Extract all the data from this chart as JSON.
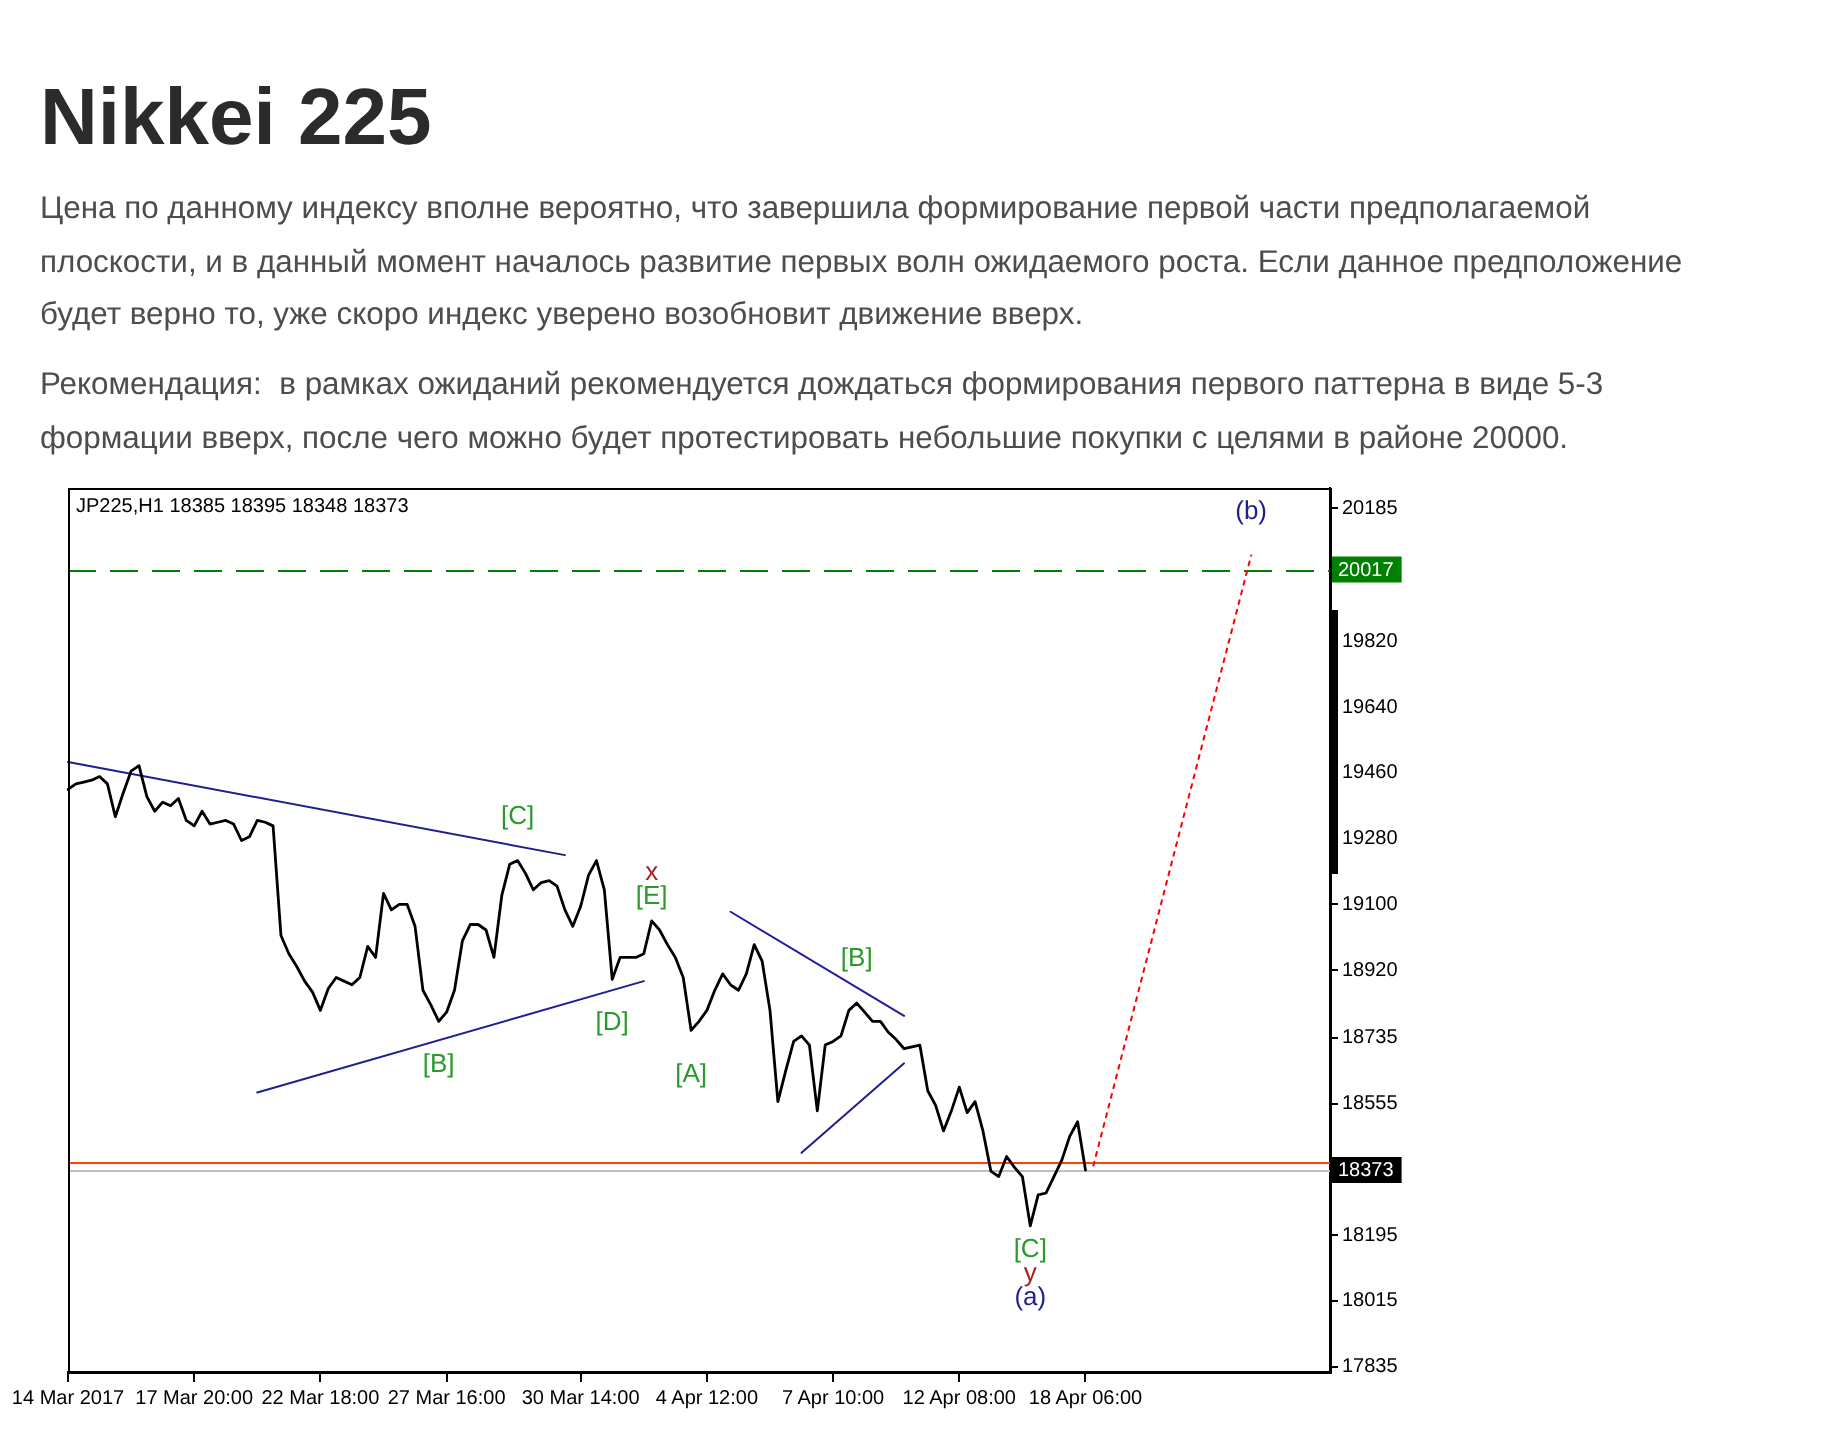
{
  "chart_data": {
    "type": "line",
    "title": "Nikkei 225",
    "subtitle": "Цена по данному индексу вполне вероятно, что завершила формирование первой части предполагаемой плоскости, и в данный момент началось развитие первых волн ожидаемого роста. Если данное предположение будет верно то, уже скоро индекс уверено возобновит движение вверх.\nРекомендация:  в рамках ожиданий рекомендуется дождаться формирования первого паттерна в виде 5-3 формации вверх, после чего можно будет протестировать небольшие покупки с целями в районе 20000.",
    "categories": [
      "14 Mar 2017",
      null,
      null,
      null,
      null,
      null,
      null,
      null,
      null,
      null,
      null,
      null,
      null,
      null,
      null,
      null,
      "17 Mar 20:00",
      null,
      null,
      null,
      null,
      null,
      null,
      null,
      null,
      null,
      null,
      null,
      null,
      null,
      null,
      null,
      "22 Mar 18:00",
      null,
      null,
      null,
      null,
      null,
      null,
      null,
      null,
      null,
      null,
      null,
      null,
      null,
      null,
      null,
      "27 Mar 16:00",
      null,
      null,
      null,
      null,
      null,
      null,
      null,
      null,
      null,
      null,
      null,
      null,
      null,
      null,
      null,
      null,
      "30 Mar 14:00",
      null,
      null,
      null,
      null,
      null,
      null,
      null,
      null,
      null,
      null,
      null,
      null,
      null,
      null,
      null,
      "4 Apr 12:00",
      null,
      null,
      null,
      null,
      null,
      null,
      null,
      null,
      null,
      null,
      null,
      null,
      null,
      null,
      null,
      "7 Apr 10:00",
      null,
      null,
      null,
      null,
      null,
      null,
      null,
      null,
      null,
      null,
      null,
      null,
      null,
      null,
      null,
      "12 Apr 08:00",
      null,
      null,
      null,
      null,
      null,
      null,
      null,
      null,
      null,
      null,
      null,
      null,
      null,
      null,
      null,
      "18 Apr 06:00",
      null,
      null,
      null,
      null,
      null,
      null,
      null,
      null,
      null,
      null,
      null,
      null,
      null,
      null,
      null,
      null,
      null,
      null,
      null,
      null,
      null,
      null,
      null,
      null,
      null,
      null,
      null,
      null,
      null,
      null,
      null
    ],
    "series": [
      {
        "color": "#000000",
        "values": [
          19415,
          19430,
          19435,
          19440,
          19450,
          19430,
          19340,
          19405,
          19465,
          19480,
          19395,
          19355,
          19380,
          19370,
          19390,
          19330,
          19315,
          19355,
          19320,
          19325,
          19330,
          19320,
          19275,
          19285,
          19330,
          19325,
          19315,
          19015,
          18965,
          18930,
          18890,
          18860,
          18810,
          18870,
          18900,
          18890,
          18880,
          18900,
          18985,
          18955,
          19130,
          19085,
          19100,
          19100,
          19040,
          18865,
          18825,
          18780,
          18805,
          18865,
          19000,
          19045,
          19045,
          19030,
          18955,
          19125,
          19210,
          19220,
          19185,
          19140,
          19160,
          19165,
          19150,
          19085,
          19040,
          19095,
          19180,
          19220,
          19140,
          18895,
          18955,
          18955,
          18955,
          18965,
          19055,
          19030,
          18990,
          18955,
          18900,
          18755,
          18780,
          18810,
          18865,
          18910,
          18880,
          18865,
          18910,
          18990,
          18945,
          18810,
          18560,
          18645,
          18725,
          18740,
          18715,
          18535,
          18715,
          18725,
          18740,
          18810,
          18830,
          18805,
          18780,
          18780,
          18750,
          18730,
          18705,
          18710,
          18715,
          18590,
          18550,
          18480,
          18535,
          18600,
          18530,
          18560,
          18480,
          18370,
          18355,
          18410,
          18380,
          18355,
          18220,
          18305,
          18310,
          18355,
          18400,
          18465,
          18505,
          18373,
          null,
          null,
          null,
          null,
          null,
          null,
          null,
          null,
          null,
          null,
          null,
          null,
          null,
          null,
          null,
          null,
          null,
          null,
          null,
          null,
          null,
          null,
          null,
          null,
          null,
          null,
          null,
          null,
          null,
          null,
          null
        ]
      },
      {
        "type": "line",
        "color": "#1f1f8f",
        "values": [
          19490,
          null,
          null,
          null,
          null,
          null,
          null,
          null,
          null,
          null,
          null,
          null,
          null,
          null,
          null,
          null,
          null,
          null,
          null,
          null,
          null,
          null,
          null,
          null,
          null,
          null,
          null,
          null,
          null,
          null,
          null,
          null,
          null,
          null,
          null,
          null,
          null,
          null,
          null,
          null,
          null,
          null,
          null,
          null,
          null,
          null,
          null,
          null,
          null,
          null,
          null,
          null,
          null,
          null,
          null,
          null,
          null,
          null,
          null,
          null,
          null,
          null,
          null,
          19235,
          null,
          null,
          null,
          null,
          null,
          null,
          null,
          null,
          null,
          null,
          null,
          null,
          null,
          null,
          null,
          null,
          null,
          null,
          null,
          null,
          null,
          null,
          null,
          null,
          null,
          null,
          null,
          null,
          null,
          null,
          null,
          null,
          null,
          null,
          null,
          null,
          null,
          null,
          null,
          null,
          null,
          null,
          null,
          null,
          null,
          null,
          null,
          null,
          null,
          null,
          null,
          null,
          null,
          null,
          null,
          null,
          null,
          null,
          null,
          null,
          null,
          null,
          null,
          null,
          null,
          null,
          null,
          null,
          null,
          null,
          null,
          null,
          null,
          null,
          null,
          null,
          null,
          null,
          null,
          null,
          null,
          null,
          null,
          null,
          null,
          null,
          null,
          null,
          null,
          null,
          null,
          null,
          null,
          null,
          null,
          null,
          null
        ]
      },
      {
        "type": "line",
        "color": "#1f1f8f",
        "values": [
          null,
          null,
          null,
          null,
          null,
          null,
          null,
          null,
          null,
          null,
          null,
          null,
          null,
          null,
          null,
          null,
          null,
          null,
          null,
          null,
          null,
          null,
          null,
          null,
          18585,
          null,
          null,
          null,
          null,
          null,
          null,
          null,
          null,
          null,
          null,
          null,
          null,
          null,
          null,
          null,
          null,
          null,
          null,
          null,
          null,
          null,
          null,
          null,
          null,
          null,
          null,
          null,
          null,
          null,
          null,
          null,
          null,
          null,
          null,
          null,
          null,
          null,
          null,
          null,
          null,
          null,
          null,
          null,
          null,
          null,
          null,
          null,
          null,
          18890,
          null,
          null,
          null,
          null,
          null,
          null,
          null,
          null,
          null,
          null,
          null,
          null,
          null,
          null,
          null,
          null,
          null,
          null,
          null,
          null,
          null,
          null,
          null,
          null,
          null,
          null,
          null,
          null,
          null,
          null,
          null,
          null,
          null,
          null,
          null,
          null,
          null,
          null,
          null,
          null,
          null,
          null,
          null,
          null,
          null,
          null,
          null,
          null,
          null,
          null,
          null,
          null,
          null,
          null,
          null,
          null,
          null,
          null,
          null,
          null,
          null,
          null,
          null,
          null,
          null,
          null,
          null,
          null,
          null,
          null,
          null,
          null,
          null,
          null,
          null,
          null,
          null,
          null,
          null,
          null,
          null,
          null,
          null,
          null,
          null,
          null,
          null
        ]
      },
      {
        "type": "line",
        "color": "#1f1f8f",
        "values": [
          null,
          null,
          null,
          null,
          null,
          null,
          null,
          null,
          null,
          null,
          null,
          null,
          null,
          null,
          null,
          null,
          null,
          null,
          null,
          null,
          null,
          null,
          null,
          null,
          null,
          null,
          null,
          null,
          null,
          null,
          null,
          null,
          null,
          null,
          null,
          null,
          null,
          null,
          null,
          null,
          null,
          null,
          null,
          null,
          null,
          null,
          null,
          null,
          null,
          null,
          null,
          null,
          null,
          null,
          null,
          null,
          null,
          null,
          null,
          null,
          null,
          null,
          null,
          null,
          null,
          null,
          null,
          null,
          null,
          null,
          null,
          null,
          null,
          null,
          null,
          null,
          null,
          null,
          null,
          null,
          null,
          null,
          null,
          null,
          19080,
          null,
          null,
          null,
          null,
          null,
          null,
          null,
          null,
          null,
          null,
          null,
          null,
          null,
          null,
          null,
          null,
          null,
          null,
          null,
          null,
          null,
          18795,
          null,
          null,
          null,
          null,
          null,
          null,
          null,
          null,
          null,
          null,
          null,
          null,
          null,
          null,
          null,
          null,
          null,
          null,
          null,
          null,
          null,
          null,
          null,
          null,
          null,
          null,
          null,
          null,
          null,
          null,
          null,
          null,
          null,
          null,
          null,
          null,
          null,
          null,
          null,
          null,
          null,
          null,
          null,
          null,
          null,
          null,
          null,
          null,
          null,
          null,
          null,
          null,
          null,
          null
        ]
      },
      {
        "type": "line",
        "color": "#1f1f8f",
        "values": [
          null,
          null,
          null,
          null,
          null,
          null,
          null,
          null,
          null,
          null,
          null,
          null,
          null,
          null,
          null,
          null,
          null,
          null,
          null,
          null,
          null,
          null,
          null,
          null,
          null,
          null,
          null,
          null,
          null,
          null,
          null,
          null,
          null,
          null,
          null,
          null,
          null,
          null,
          null,
          null,
          null,
          null,
          null,
          null,
          null,
          null,
          null,
          null,
          null,
          null,
          null,
          null,
          null,
          null,
          null,
          null,
          null,
          null,
          null,
          null,
          null,
          null,
          null,
          null,
          null,
          null,
          null,
          null,
          null,
          null,
          null,
          null,
          null,
          null,
          null,
          null,
          null,
          null,
          null,
          null,
          null,
          null,
          null,
          null,
          null,
          null,
          null,
          null,
          null,
          null,
          null,
          null,
          null,
          18420,
          null,
          null,
          null,
          null,
          null,
          null,
          null,
          null,
          null,
          null,
          null,
          null,
          18665,
          null,
          null,
          null,
          null,
          null,
          null,
          null,
          null,
          null,
          null,
          null,
          null,
          null,
          null,
          null,
          null,
          null,
          null,
          null,
          null,
          null,
          null,
          null,
          null,
          null,
          null,
          null,
          null,
          null,
          null,
          null,
          null,
          null,
          null,
          null,
          null,
          null,
          null,
          null,
          null,
          null,
          null,
          null,
          null,
          null,
          null,
          null,
          null,
          null,
          null,
          null,
          null,
          null,
          null
        ]
      },
      {
        "type": "line",
        "color": "#ff0000",
        "line_style": "dotted",
        "values": [
          null,
          null,
          null,
          null,
          null,
          null,
          null,
          null,
          null,
          null,
          null,
          null,
          null,
          null,
          null,
          null,
          null,
          null,
          null,
          null,
          null,
          null,
          null,
          null,
          null,
          null,
          null,
          null,
          null,
          null,
          null,
          null,
          null,
          null,
          null,
          null,
          null,
          null,
          null,
          null,
          null,
          null,
          null,
          null,
          null,
          null,
          null,
          null,
          null,
          null,
          null,
          null,
          null,
          null,
          null,
          null,
          null,
          null,
          null,
          null,
          null,
          null,
          null,
          null,
          null,
          null,
          null,
          null,
          null,
          null,
          null,
          null,
          null,
          null,
          null,
          null,
          null,
          null,
          null,
          null,
          null,
          null,
          null,
          null,
          null,
          null,
          null,
          null,
          null,
          null,
          null,
          null,
          null,
          null,
          null,
          null,
          null,
          null,
          null,
          null,
          null,
          null,
          null,
          null,
          null,
          null,
          null,
          null,
          null,
          null,
          null,
          null,
          null,
          null,
          null,
          null,
          null,
          null,
          null,
          null,
          null,
          null,
          null,
          null,
          null,
          null,
          null,
          null,
          null,
          null,
          18385,
          null,
          null,
          null,
          null,
          null,
          null,
          null,
          null,
          null,
          null,
          null,
          null,
          null,
          null,
          null,
          null,
          null,
          null,
          null,
          20055,
          null,
          null,
          null,
          null,
          null,
          null,
          null,
          null,
          null,
          null
        ]
      }
    ],
    "ylim": [
      17820,
      20240
    ],
    "yticks": [
      20185,
      19820,
      19640,
      19460,
      19280,
      19100,
      18920,
      18735,
      18555,
      18195,
      18015,
      17835
    ],
    "ref_lines": [
      {
        "axis": "y",
        "value": 20017,
        "label": "20017",
        "color": "#008000",
        "line_style": "dashed"
      },
      {
        "axis": "y",
        "value": 18395,
        "color": "#ff4500"
      },
      {
        "axis": "y",
        "value": 18373,
        "label": "18373",
        "color": "#c0c0c0"
      }
    ],
    "annotations": [
      "JP225,H1 18385 18395 18348 18373",
      {
        "text": "[B]",
        "y": 18780
      },
      {
        "text": "[C]",
        "y": 19220
      },
      {
        "text": "[D]",
        "y": 18895
      },
      {
        "text": "[E]",
        "y": 19055
      },
      {
        "text": "x",
        "y": 19055
      },
      {
        "text": "[A]",
        "y": 18755
      },
      {
        "text": "[B]",
        "y": 18830
      },
      {
        "text": "[C]",
        "y": 18220
      },
      {
        "text": "y",
        "y": 18220
      },
      {
        "text": "(a)",
        "y": 18220
      },
      {
        "text": "(b)",
        "y": 20055
      }
    ]
  }
}
